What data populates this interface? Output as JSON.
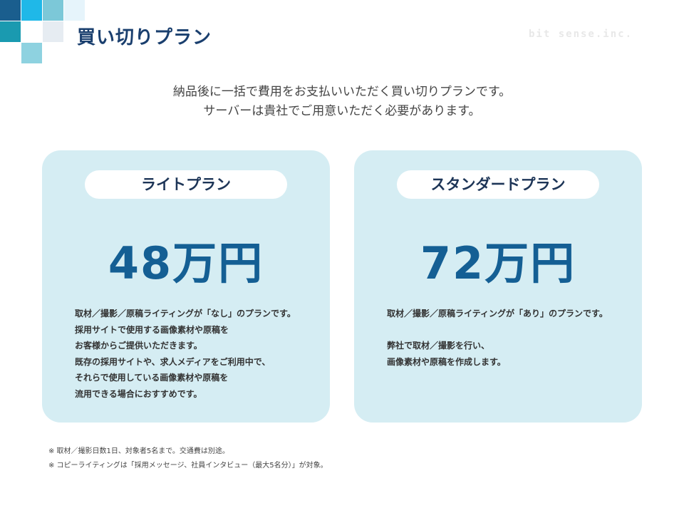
{
  "header": {
    "title": "買い切りプラン",
    "brand": "bit sense.inc.",
    "logo_colors": [
      "#1a5e8e",
      "#1fb8e8",
      "#7cc8d8",
      "#e6f4fb",
      "#1a9ab0",
      "#e6ecf2",
      "#8ed2e0"
    ]
  },
  "intro": [
    "納品後に一括で費用をお支払いいただく買い切りプランです。",
    "サーバーは貴社でご用意いただく必要があります。"
  ],
  "plans": [
    {
      "name": "ライトプラン",
      "price": "48万円",
      "description": [
        "取材／撮影／原稿ライティングが「なし」のプランです。",
        "採用サイトで使用する画像素材や原稿を",
        "お客様からご提供いただきます。",
        "既存の採用サイトや、求人メディアをご利用中で、",
        "それらで使用している画像素材や原稿を",
        "流用できる場合におすすめです。"
      ]
    },
    {
      "name": "スタンダードプラン",
      "price": "72万円",
      "description": [
        "取材／撮影／原稿ライティングが「あり」のプランです。",
        "",
        "弊社で取材／撮影を行い、",
        "画像素材や原稿を作成します。"
      ]
    }
  ],
  "notes": [
    "※  取材／撮影日数1日、対象者5名まで。交通費は別途。",
    "※  コピーライティングは「採用メッセージ、社員インタビュー（最大5名分）」が対象。"
  ],
  "colors": {
    "title": "#1a3f6e",
    "price": "#145f94",
    "card": "#d5edf3"
  }
}
